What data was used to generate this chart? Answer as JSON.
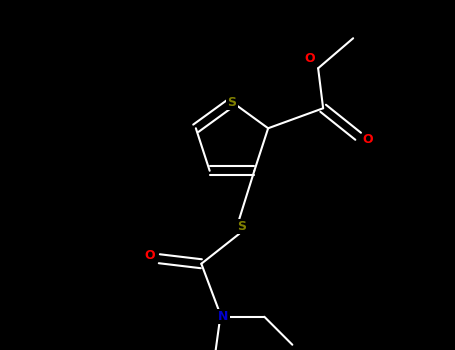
{
  "bg_color": "#000000",
  "atom_colors": {
    "S": "#808000",
    "O": "#ff0000",
    "N": "#0000cd",
    "C": "#ffffff",
    "bond": "#ffffff"
  },
  "figsize": [
    4.55,
    3.5
  ],
  "dpi": 100,
  "xlim": [
    0,
    455
  ],
  "ylim": [
    0,
    350
  ]
}
